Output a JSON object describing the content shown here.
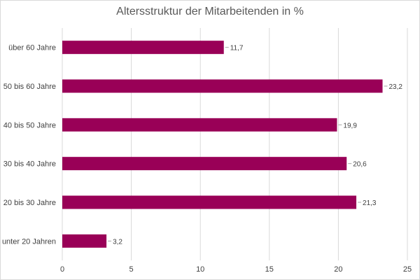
{
  "chart_data": {
    "type": "bar",
    "orientation": "horizontal",
    "title": "Altersstruktur der Mitarbeitenden in %",
    "categories": [
      "über 60 Jahre",
      "50 bis 60 Jahre",
      "40 bis 50 Jahre",
      "30 bis 40 Jahre",
      "20 bis 30 Jahre",
      "unter 20 Jahren"
    ],
    "values": [
      11.7,
      23.2,
      19.9,
      20.6,
      21.3,
      3.2
    ],
    "value_labels": [
      "11,7",
      "23,2",
      "19,9",
      "20,6",
      "21,3",
      "3,2"
    ],
    "xlim": [
      0,
      25
    ],
    "xticks": [
      0,
      5,
      10,
      15,
      20,
      25
    ],
    "grid": true,
    "bar_color": "#990057"
  }
}
